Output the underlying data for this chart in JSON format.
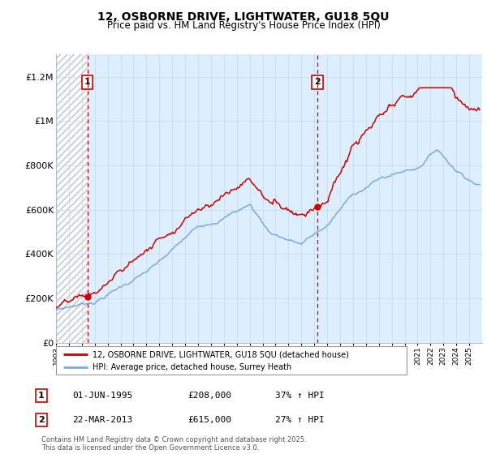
{
  "title": "12, OSBORNE DRIVE, LIGHTWATER, GU18 5QU",
  "subtitle": "Price paid vs. HM Land Registry's House Price Index (HPI)",
  "ylim": [
    0,
    1300000
  ],
  "yticks": [
    0,
    200000,
    400000,
    600000,
    800000,
    1000000,
    1200000
  ],
  "ytick_labels": [
    "£0",
    "£200K",
    "£400K",
    "£600K",
    "£800K",
    "£1M",
    "£1.2M"
  ],
  "x_start_year": 1993,
  "x_end_year": 2026,
  "sale1_date": 1995.42,
  "sale1_price": 208000,
  "sale1_label": "1",
  "sale2_date": 2013.22,
  "sale2_price": 615000,
  "sale2_label": "2",
  "legend_line1": "12, OSBORNE DRIVE, LIGHTWATER, GU18 5QU (detached house)",
  "legend_line2": "HPI: Average price, detached house, Surrey Heath",
  "table_row1": [
    "1",
    "01-JUN-1995",
    "£208,000",
    "37% ↑ HPI"
  ],
  "table_row2": [
    "2",
    "22-MAR-2013",
    "£615,000",
    "27% ↑ HPI"
  ],
  "footnote": "Contains HM Land Registry data © Crown copyright and database right 2025.\nThis data is licensed under the Open Government Licence v3.0.",
  "line_color_price": "#cc0000",
  "line_color_hpi": "#7aabdc",
  "grid_color": "#c8d8e8",
  "plot_bg_color": "#ddeeff",
  "hatch_color": "#bbbbbb"
}
